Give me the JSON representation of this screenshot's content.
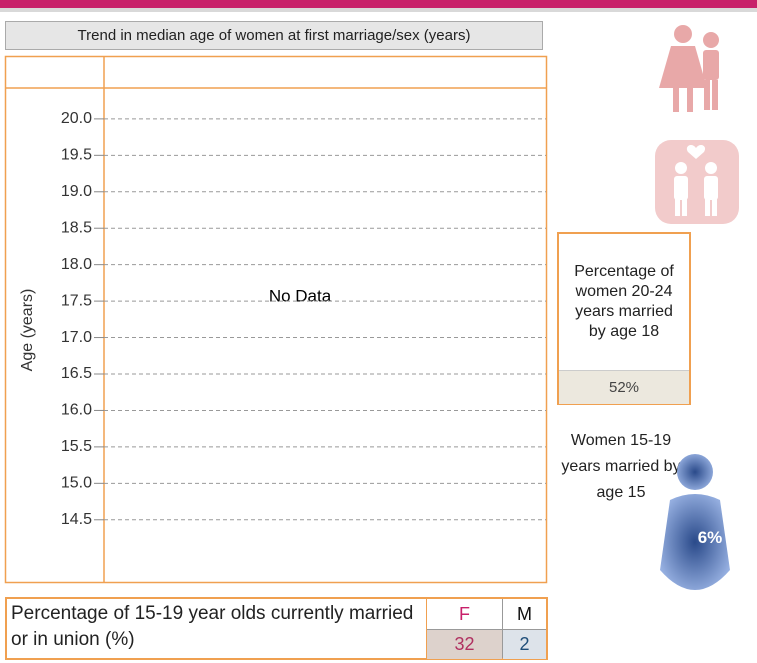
{
  "chart_data": {
    "type": "line",
    "title": "Trend in median age of women at first marriage/sex (years)",
    "ylabel": "Age (years)",
    "annotation": "No Data",
    "ylim": [
      13.66,
      20.41
    ],
    "yticks": [
      14.5,
      15,
      15.5,
      16,
      16.5,
      17,
      17.5,
      18,
      18.5,
      19,
      19.5,
      20
    ],
    "ytick_labels": [
      "14.5",
      "15.0",
      "15.5",
      "16.0",
      "16.5",
      "17.0",
      "17.5",
      "18.0",
      "18.5",
      "19.0",
      "19.5",
      "20.0"
    ],
    "grid": true,
    "series": []
  },
  "married_by_18": {
    "label": "Percentage of women 20-24 years married by age 18",
    "value": 52,
    "value_label": "52%"
  },
  "married_by_15": {
    "label": "Women 15-19 years married by age 15",
    "value": 6,
    "value_label": "6%"
  },
  "in_union": {
    "label": "Percentage of 15-19 year olds currently married or in union (%)",
    "headers": [
      "F",
      "M"
    ],
    "values": [
      32,
      2
    ]
  }
}
